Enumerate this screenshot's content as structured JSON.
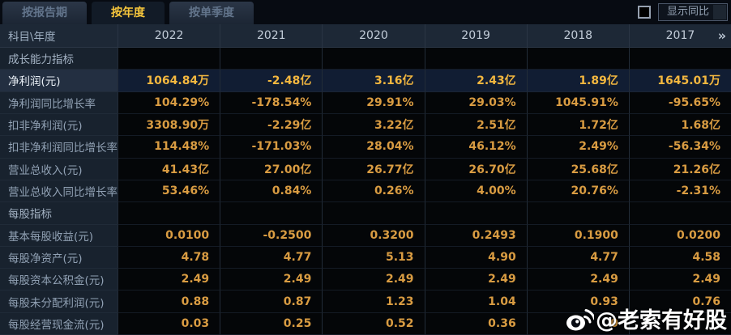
{
  "tabs": [
    {
      "label": "按报告期",
      "active": false
    },
    {
      "label": "按年度",
      "active": true
    },
    {
      "label": "按单季度",
      "active": false
    }
  ],
  "controls": {
    "show_yoy_checkbox_checked": false,
    "show_yoy_label": "显示同比"
  },
  "table": {
    "corner_label": "科目\\年度",
    "years": [
      "2022",
      "2021",
      "2020",
      "2019",
      "2018",
      "2017"
    ],
    "scroll_more_icon": "»",
    "rows": [
      {
        "type": "section",
        "label": "成长能力指标",
        "values": [
          "",
          "",
          "",
          "",
          "",
          ""
        ]
      },
      {
        "type": "data",
        "highlight": true,
        "label": "净利润(元)",
        "values": [
          "1064.84万",
          "-2.48亿",
          "3.16亿",
          "2.43亿",
          "1.89亿",
          "1645.01万"
        ]
      },
      {
        "type": "data",
        "label": "净利润同比增长率",
        "values": [
          "104.29%",
          "-178.54%",
          "29.91%",
          "29.03%",
          "1045.91%",
          "-95.65%"
        ]
      },
      {
        "type": "data",
        "label": "扣非净利润(元)",
        "values": [
          "3308.90万",
          "-2.29亿",
          "3.22亿",
          "2.51亿",
          "1.72亿",
          "1.68亿"
        ]
      },
      {
        "type": "data",
        "label": "扣非净利润同比增长率",
        "values": [
          "114.48%",
          "-171.03%",
          "28.04%",
          "46.12%",
          "2.49%",
          "-56.34%"
        ]
      },
      {
        "type": "data",
        "label": "营业总收入(元)",
        "values": [
          "41.43亿",
          "27.00亿",
          "26.77亿",
          "26.70亿",
          "25.68亿",
          "21.26亿"
        ]
      },
      {
        "type": "data",
        "label": "营业总收入同比增长率",
        "values": [
          "53.46%",
          "0.84%",
          "0.26%",
          "4.00%",
          "20.76%",
          "-2.31%"
        ]
      },
      {
        "type": "section",
        "label": "每股指标",
        "values": [
          "",
          "",
          "",
          "",
          "",
          ""
        ]
      },
      {
        "type": "data",
        "label": "基本每股收益(元)",
        "values": [
          "0.0100",
          "-0.2500",
          "0.3200",
          "0.2493",
          "0.1900",
          "0.0200"
        ]
      },
      {
        "type": "data",
        "label": "每股净资产(元)",
        "values": [
          "4.78",
          "4.77",
          "5.13",
          "4.90",
          "4.77",
          "4.58"
        ]
      },
      {
        "type": "data",
        "label": "每股资本公积金(元)",
        "values": [
          "2.49",
          "2.49",
          "2.49",
          "2.49",
          "2.49",
          "2.49"
        ]
      },
      {
        "type": "data",
        "label": "每股未分配利润(元)",
        "values": [
          "0.88",
          "0.87",
          "1.23",
          "1.04",
          "0.93",
          "0.76"
        ]
      },
      {
        "type": "data",
        "label": "每股经营现金流(元)",
        "values": [
          "0.03",
          "0.25",
          "0.52",
          "0.36",
          "0",
          ""
        ]
      }
    ]
  },
  "watermark": {
    "icon": "weibo-icon",
    "text": "@老索有好股"
  },
  "colors": {
    "active_tab_text": "#f6c63c",
    "value_orange": "#d99c42",
    "highlight_value_yellow": "#f3b73f",
    "header_bg": "#1d2836",
    "label_col_bg": "#18222e",
    "cell_bg": "#040608",
    "highlight_row_bg": "#111d33"
  }
}
